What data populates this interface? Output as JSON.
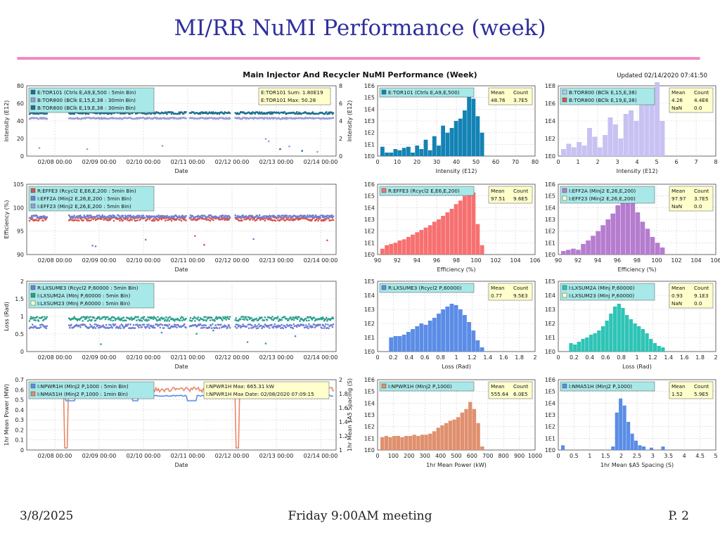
{
  "slide": {
    "title": "MI/RR NuMI Performance (week)",
    "footer_date": "3/8/2025",
    "footer_meeting": "Friday 9:00AM meeting",
    "footer_page": "P. 2"
  },
  "figure": {
    "main_title": "Main Injector And Recycler NuMI Performance (Week)",
    "updated": "Updated 02/14/2020 07:41:50"
  },
  "colors": {
    "blue_dark": "#1f6f8b",
    "lavender": "#9b9bd6",
    "red": "#d9534f",
    "periwinkle": "#6f7fd0",
    "teal": "#2aa08c",
    "salmon": "#e9876a",
    "cornflower": "#5b8de6",
    "hist_pink": "#f77070",
    "hist_violet": "#b57ccf",
    "hist_teal": "#2ec4b6",
    "hist_salmon": "#e0906e",
    "hist_lilac": "#c7c2f2",
    "hist_blue": "#1383b4",
    "legend_bg": "#a8e8e8",
    "stats_bg": "#ffffcc"
  },
  "chart_data": [
    {
      "id": "ts_intensity",
      "type": "scatter",
      "xlabel": "Date",
      "x_ticks": [
        "02/08 00:00",
        "02/09 00:00",
        "02/10 00:00",
        "02/11 00:00",
        "02/12 00:00",
        "02/13 00:00",
        "02/14 00:00"
      ],
      "ylabel": "Intensity (E12)",
      "ylim": [
        0,
        80
      ],
      "y_ticks": [
        "0",
        "20",
        "40",
        "60",
        "80"
      ],
      "y2label": "Intensity (E12)",
      "y2lim": [
        0,
        8
      ],
      "y2_ticks": [
        "0",
        "2",
        "4",
        "6",
        "8"
      ],
      "legend": [
        "E:TOR101 (Ctrls E,A9,E,500 : 5min Bin)",
        "B:TOR800 (BClk E,15,E,38 : 30min Bin)",
        "B:TOR800 (BClk E,19,E,38 : 30min Bin)"
      ],
      "info_box": [
        "E:TOR101 Sum: 1.80E19",
        "E:TOR101 Max: 50.28"
      ],
      "series": [
        {
          "name": "E:TOR101",
          "level": 49,
          "noise": 1.2,
          "color_key": "blue_dark"
        },
        {
          "name": "B:TOR800",
          "level": 43,
          "noise": 0.8,
          "color_key": "lavender"
        }
      ]
    },
    {
      "id": "hist_intensity",
      "type": "bar",
      "xlabel": "Intensity (E12)",
      "xlim": [
        0,
        80
      ],
      "x_ticks": [
        "0",
        "10",
        "20",
        "30",
        "40",
        "50",
        "60",
        "70",
        "80"
      ],
      "y_ticks": [
        "1E0",
        "1E1",
        "1E2",
        "1E3",
        "1E4",
        "1E5",
        "1E6"
      ],
      "legend": [
        "E:TOR101 (Ctrls E,A9,E,500)"
      ],
      "stats_header": [
        "Mean",
        "Count"
      ],
      "stats": [
        [
          "48.76",
          "3.7E5"
        ]
      ],
      "values": [
        0.8,
        0.3,
        0.3,
        0.6,
        0.5,
        0.7,
        0.8,
        0.3,
        0.9,
        0.6,
        1.4,
        0.5,
        1.7,
        0.9,
        2.6,
        2.0,
        2.4,
        3.0,
        3.2,
        3.9,
        5.5,
        4.9,
        3.4,
        2.0
      ]
    },
    {
      "id": "hist_tor800",
      "type": "bar",
      "xlabel": "Intensity (E12)",
      "xlim": [
        0,
        8
      ],
      "x_ticks": [
        "0",
        "1",
        "2",
        "3",
        "4",
        "5",
        "6",
        "7",
        "8"
      ],
      "y_ticks": [
        "1E0",
        "1E2",
        "1E4",
        "1E6",
        "1E8"
      ],
      "legend": [
        "B:TOR800 (BClk E,15,E,38)",
        "B:TOR800 (BClk E,19,E,38)"
      ],
      "stats_header": [
        "Mean",
        "Count"
      ],
      "stats": [
        [
          "4.26",
          "4.4E6"
        ],
        [
          "NaN",
          "0.0"
        ]
      ],
      "values": [
        0.4,
        0.7,
        0.5,
        0.8,
        0.6,
        1.6,
        1.1,
        0.5,
        1.2,
        2.2,
        1.8,
        1.0,
        2.4,
        2.6,
        2.0,
        2.9,
        3.1,
        3.7,
        4.2,
        2.0
      ]
    },
    {
      "id": "ts_efficiency",
      "type": "scatter",
      "xlabel": "Date",
      "x_ticks": [
        "02/08 00:00",
        "02/09 00:00",
        "02/10 00:00",
        "02/11 00:00",
        "02/12 00:00",
        "02/13 00:00",
        "02/14 00:00"
      ],
      "ylabel": "Efficiency (%)",
      "ylim": [
        90,
        105
      ],
      "y_ticks": [
        "90",
        "95",
        "100",
        "105"
      ],
      "legend": [
        "R:EFFE3 (Rcycl2 E,E6,E,200 : 5min Bin)",
        "I:EFF2A (Minj2 E,26,E,200 : 5min Bin)",
        "I:EFF23 (Minj2 E,26,E,200 : 5min Bin)"
      ],
      "series": [
        {
          "name": "R:EFFE3",
          "level": 97.6,
          "noise": 0.4,
          "color_key": "red"
        },
        {
          "name": "I:EFF2A",
          "level": 98.1,
          "noise": 0.3,
          "color_key": "periwinkle"
        }
      ]
    },
    {
      "id": "hist_effe3",
      "type": "bar",
      "xlabel": "Efficiency (%)",
      "xlim": [
        90,
        106
      ],
      "x_ticks": [
        "90",
        "92",
        "94",
        "96",
        "98",
        "100",
        "102",
        "104",
        "106"
      ],
      "y_ticks": [
        "1E0",
        "1E1",
        "1E2",
        "1E3",
        "1E4",
        "1E5",
        "1E6"
      ],
      "legend": [
        "R:EFFE3 (Rcycl2 E,E6,E,200)"
      ],
      "stats_header": [
        "Mean",
        "Count"
      ],
      "stats": [
        [
          "97.51",
          "9.6E5"
        ]
      ],
      "values": [
        0.5,
        0.8,
        0.9,
        1.0,
        1.2,
        1.3,
        1.5,
        1.7,
        1.9,
        2.1,
        2.3,
        2.5,
        2.8,
        3.0,
        3.3,
        3.6,
        3.9,
        4.3,
        4.6,
        5.0,
        5.4,
        5.3,
        2.6,
        0.8
      ]
    },
    {
      "id": "hist_eff2a",
      "type": "bar",
      "xlabel": "Efficiency (%)",
      "xlim": [
        90,
        106
      ],
      "x_ticks": [
        "90",
        "92",
        "94",
        "96",
        "98",
        "100",
        "102",
        "104",
        "106"
      ],
      "y_ticks": [
        "1E0",
        "1E1",
        "1E2",
        "1E3",
        "1E4",
        "1E5",
        "1E6"
      ],
      "legend": [
        "I:EFF2A (Minj2 E,26,E,200)",
        "I:EFF23 (Minj2 E,26,E,200)"
      ],
      "stats_header": [
        "Mean",
        "Count"
      ],
      "stats": [
        [
          "97.97",
          "3.7E5"
        ],
        [
          "NaN",
          "0.0"
        ]
      ],
      "values": [
        0.3,
        0.4,
        0.5,
        0.4,
        0.9,
        1.2,
        1.6,
        2.0,
        2.5,
        3.0,
        3.5,
        4.2,
        4.7,
        4.9,
        4.5,
        3.6,
        2.8,
        2.2,
        1.5,
        1.0,
        0.6
      ]
    },
    {
      "id": "ts_loss",
      "type": "scatter",
      "xlabel": "Date",
      "x_ticks": [
        "02/08 00:00",
        "02/09 00:00",
        "02/10 00:00",
        "02/11 00:00",
        "02/12 00:00",
        "02/13 00:00",
        "02/14 00:00"
      ],
      "ylabel": "Loss (Rad)",
      "ylim": [
        0,
        2
      ],
      "y_ticks": [
        "0",
        "0.5",
        "1",
        "1.5",
        "2"
      ],
      "legend": [
        "R:LXSUME3 (Rcycl2 P,60000 : 5min Bin)",
        "I:LXSUM2A (MInj P,60000 : 5min Bin)",
        "I:LXSUM23 (MInj P,60000 : 5min Bin)"
      ],
      "series": [
        {
          "name": "R:LXSUME3",
          "level": 0.72,
          "noise": 0.06,
          "color_key": "periwinkle"
        },
        {
          "name": "I:LXSUM2A",
          "level": 0.93,
          "noise": 0.06,
          "color_key": "teal"
        }
      ]
    },
    {
      "id": "hist_lxsume3",
      "type": "bar",
      "xlabel": "Loss (Rad)",
      "xlim": [
        0,
        2
      ],
      "x_ticks": [
        "0",
        "0.2",
        "0.4",
        "0.6",
        "0.8",
        "1",
        "1.2",
        "1.4",
        "1.6",
        "1.8",
        "2"
      ],
      "y_ticks": [
        "1E0",
        "1E1",
        "1E2",
        "1E3",
        "1E4",
        "1E5"
      ],
      "legend": [
        "R:LXSUME3 (Rcycl2 P,60000)"
      ],
      "stats_header": [
        "Mean",
        "Count"
      ],
      "stats": [
        [
          "0.77",
          "9.5E3"
        ]
      ],
      "values": [
        0,
        0,
        1.0,
        1.1,
        1.1,
        1.2,
        1.4,
        1.6,
        1.8,
        2.0,
        1.9,
        2.2,
        2.4,
        2.7,
        3.0,
        3.2,
        3.4,
        3.3,
        3.0,
        2.6,
        2.1,
        1.5,
        0.8,
        0.3
      ]
    },
    {
      "id": "hist_lxsum2a",
      "type": "bar",
      "xlabel": "Loss (Rad)",
      "xlim": [
        0,
        2
      ],
      "x_ticks": [
        "0",
        "0.2",
        "0.4",
        "0.6",
        "0.8",
        "1",
        "1.2",
        "1.4",
        "1.6",
        "1.8",
        "2"
      ],
      "y_ticks": [
        "1E0",
        "1E1",
        "1E2",
        "1E3",
        "1E4",
        "1E5"
      ],
      "legend": [
        "I:LXSUM2A (MInj P,60000)",
        "I:LXSUM23 (MInj P,60000)"
      ],
      "stats_header": [
        "Mean",
        "Count"
      ],
      "stats": [
        [
          "0.93",
          "9.1E3"
        ],
        [
          "NaN",
          "0.0"
        ]
      ],
      "values": [
        0,
        0,
        0.6,
        0.5,
        0.7,
        0.9,
        1.0,
        1.2,
        1.3,
        1.5,
        1.8,
        2.2,
        2.7,
        3.2,
        3.4,
        3.1,
        2.6,
        2.3,
        2.0,
        1.8,
        1.6,
        1.3,
        0.9,
        0.6,
        0.4,
        0.3
      ]
    },
    {
      "id": "ts_power",
      "type": "line",
      "xlabel": "Date",
      "x_ticks": [
        "02/08 00:00",
        "02/09 00:00",
        "02/10 00:00",
        "02/11 00:00",
        "02/12 00:00",
        "02/13 00:00",
        "02/14 00:00"
      ],
      "ylabel": "1hr Mean Power (MW)",
      "ylim": [
        0,
        0.7
      ],
      "y_ticks": [
        "0",
        "0.1",
        "0.2",
        "0.3",
        "0.4",
        "0.5",
        "0.6",
        "0.7"
      ],
      "y2label": "1hr Mean $A5 Spacing (S)",
      "y2lim": [
        1,
        2
      ],
      "y2_ticks": [
        "1",
        "1.2",
        "1.4",
        "1.6",
        "1.8",
        "2"
      ],
      "legend": [
        "I:NPWR1H (Minj2 P,1000 : 5min Bin)",
        "I:NMA51H (Minj2 P,1000 : 1min Bin)"
      ],
      "info_box": [
        "I:NPWR1H Max: 665.31 kW",
        "I:NPWR1H Max Date: 02/08/2020 07:09:15"
      ],
      "series": [
        {
          "name": "I:NPWR1H",
          "level": 0.6,
          "noise": 0.025,
          "color_key": "salmon"
        },
        {
          "name": "I:NMA51H",
          "level": 0.54,
          "noise": 0.005,
          "color_key": "cornflower"
        }
      ]
    },
    {
      "id": "hist_npwr1h",
      "type": "bar",
      "xlabel": "1hr Mean Power (kW)",
      "xlim": [
        0,
        1000
      ],
      "x_ticks": [
        "0",
        "100",
        "200",
        "300",
        "400",
        "500",
        "600",
        "700",
        "800",
        "900",
        "1000"
      ],
      "y_ticks": [
        "1E0",
        "1E1",
        "1E2",
        "1E3",
        "1E4",
        "1E5",
        "1E6"
      ],
      "legend": [
        "I:NPWR1H (Minj2 P,1000)"
      ],
      "stats_header": [
        "Mean",
        "Count"
      ],
      "stats": [
        [
          "555.64",
          "6.0E5"
        ]
      ],
      "values": [
        1.1,
        1.2,
        1.1,
        1.2,
        1.2,
        1.1,
        1.2,
        1.2,
        1.3,
        1.2,
        1.3,
        1.3,
        1.4,
        1.6,
        1.9,
        2.1,
        2.3,
        2.5,
        2.6,
        2.8,
        3.2,
        3.5,
        4.1,
        3.5,
        2.3,
        0.3
      ]
    },
    {
      "id": "hist_nma51h",
      "type": "bar",
      "xlabel": "1hr Mean $A5 Spacing (S)",
      "xlim": [
        0,
        5
      ],
      "x_ticks": [
        "0",
        "0.5",
        "1",
        "1.5",
        "2",
        "2.5",
        "3",
        "3.5",
        "4",
        "4.5",
        "5"
      ],
      "y_ticks": [
        "1E0",
        "1E1",
        "1E2",
        "1E3",
        "1E4",
        "1E5",
        "1E6"
      ],
      "legend": [
        "I:NMA51H (Minj2 P,1000)"
      ],
      "stats_header": [
        "Mean",
        "Count"
      ],
      "stats": [
        [
          "1.52",
          "5.9E5"
        ]
      ],
      "values": [
        0.4,
        0,
        0,
        0,
        0,
        0,
        0,
        0,
        0,
        0,
        0,
        0,
        0,
        0.3,
        3.2,
        4.4,
        3.8,
        2.4,
        1.4,
        0.8,
        0.4,
        0.3,
        0,
        0.2,
        0,
        0,
        0.3
      ]
    }
  ]
}
